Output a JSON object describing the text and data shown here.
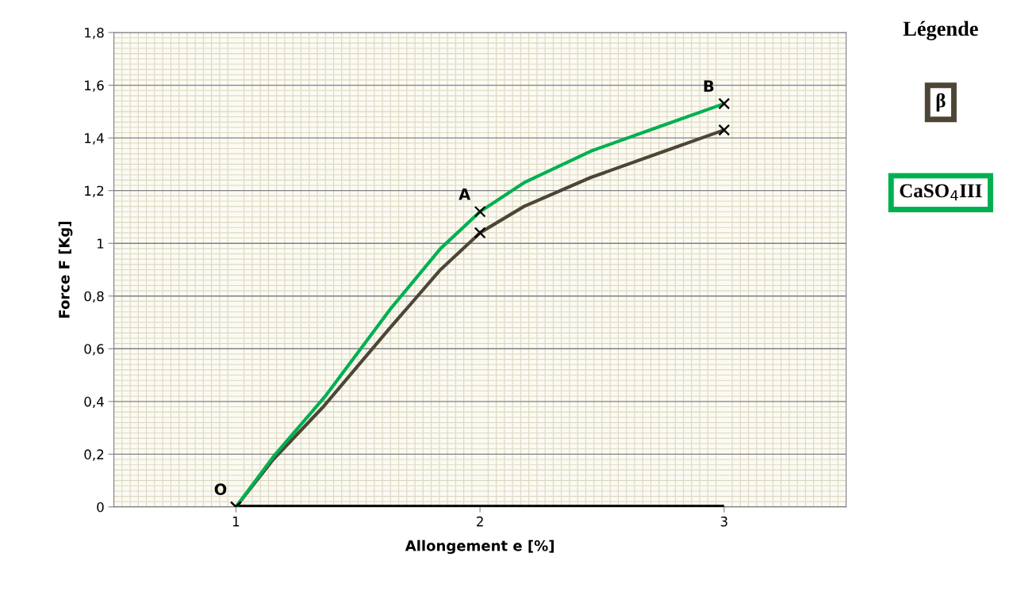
{
  "chart_data": {
    "type": "line",
    "xlabel": "Allongement e [%]",
    "ylabel": "Force F [Kg]",
    "legend_title": "Légende",
    "x": [
      1,
      2,
      3
    ],
    "series": [
      {
        "name": "β",
        "color": "#4d4535",
        "x": [
          1,
          1.153,
          1.358,
          1.632,
          1.838,
          2,
          2.18,
          2.454,
          2.727,
          3
        ],
        "values": [
          0,
          0.18,
          0.38,
          0.68,
          0.9,
          1.04,
          1.14,
          1.25,
          1.34,
          1.43
        ]
      },
      {
        "name": "CaSO$_{4}$III",
        "color": "#00b050",
        "x": [
          1,
          1.153,
          1.366,
          1.632,
          1.838,
          2,
          2.18,
          2.454,
          2.727,
          3
        ],
        "values": [
          0,
          0.19,
          0.42,
          0.75,
          0.98,
          1.12,
          1.23,
          1.35,
          1.44,
          1.53
        ]
      },
      {
        "color": "#000000",
        "values": [
          0,
          0,
          0
        ]
      },
      {
        "type": "scatter",
        "color": "#000000",
        "marker": "cross",
        "values": [
          0,
          1.04,
          1.43
        ]
      },
      {
        "type": "scatter",
        "color": "#000000",
        "marker": "cross",
        "values": [
          0,
          1.12,
          1.53
        ]
      }
    ],
    "xlim": [
      0.5,
      3.5
    ],
    "xticks": [
      1,
      2,
      3
    ],
    "ylim": [
      0,
      1.8
    ],
    "yticks": [
      0,
      {
        "value": 0.2,
        "label": "0,2"
      },
      {
        "value": 0.4,
        "label": "0,4"
      },
      {
        "value": 0.6,
        "label": "0,6"
      },
      {
        "value": 0.8,
        "label": "0,8"
      },
      1,
      {
        "value": 1.2,
        "label": "1,2"
      },
      {
        "value": 1.4,
        "label": "1,4"
      },
      {
        "value": 1.6,
        "label": "1,6"
      },
      {
        "value": 1.8,
        "label": "1,8"
      }
    ],
    "annotations": [
      {
        "text": "O",
        "x": 1,
        "y": 0
      },
      {
        "text": "A",
        "x": 2,
        "y": 1.12
      },
      {
        "text": "B",
        "x": 3,
        "y": 1.53
      }
    ],
    "grid": true,
    "legend": "right",
    "line_style": "solid"
  }
}
